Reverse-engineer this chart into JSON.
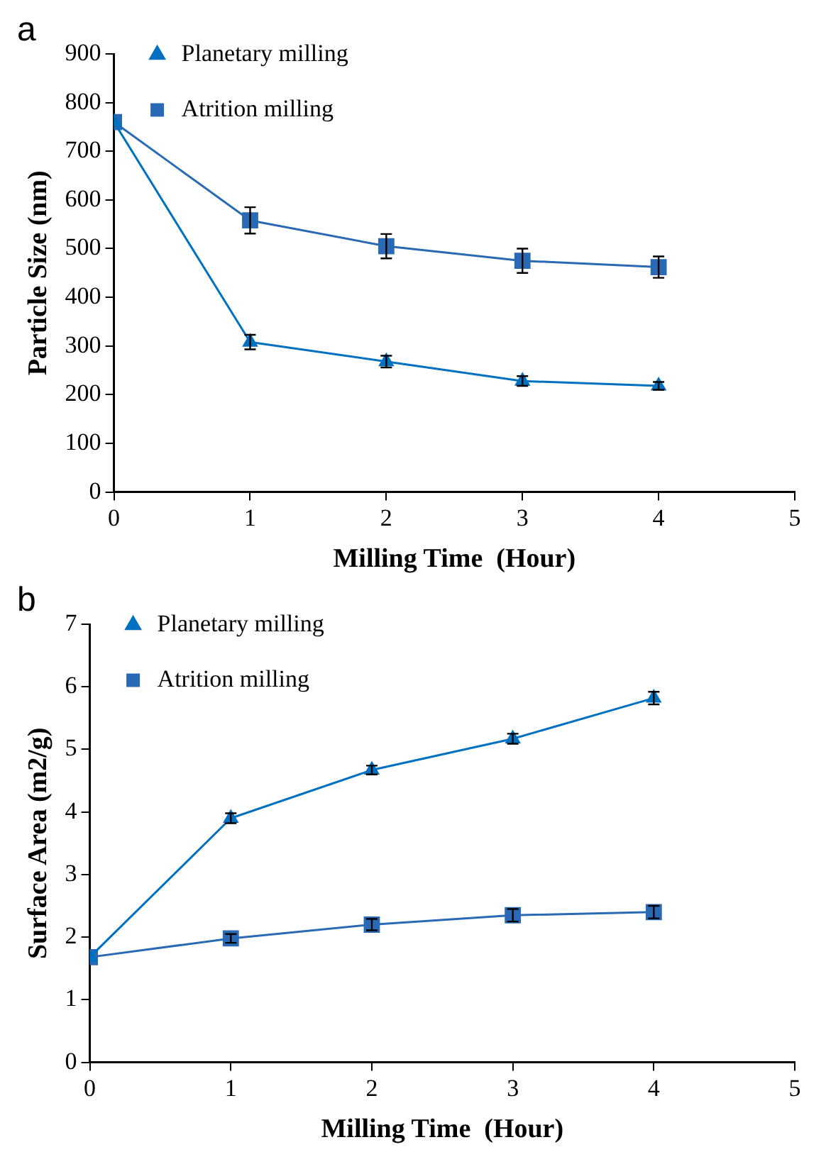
{
  "chart_data": [
    {
      "type": "line",
      "annotations": [
        "a"
      ],
      "xlabel": "Milling Time  (Hour)",
      "ylabel": "Particle Size (nm)",
      "x": [
        0,
        1,
        2,
        3,
        4
      ],
      "xlim": [
        0,
        5
      ],
      "xticks": [
        0,
        1,
        2,
        3,
        4,
        5
      ],
      "ylim": [
        0,
        900
      ],
      "yticks": [
        0,
        100,
        200,
        300,
        400,
        500,
        600,
        700,
        800,
        900
      ],
      "grid": false,
      "legend": "top",
      "line_style": "solid",
      "series": [
        {
          "name": "Planetary milling",
          "color": "#0070c0",
          "marker": "triangle",
          "values": [
            760,
            308,
            268,
            228,
            218
          ],
          "errors": [
            null,
            15,
            12,
            10,
            8
          ]
        },
        {
          "name": "Atrition milling",
          "color": "#2a6ab4",
          "marker": "square",
          "values": [
            760,
            558,
            505,
            475,
            462
          ],
          "errors": [
            null,
            27,
            25,
            25,
            22
          ]
        }
      ]
    },
    {
      "type": "line",
      "annotations": [
        "b"
      ],
      "xlabel": "Milling Time  (Hour)",
      "ylabel": "Surface Area (m2/g)",
      "x": [
        0,
        1,
        2,
        3,
        4
      ],
      "xlim": [
        0,
        5
      ],
      "xticks": [
        0,
        1,
        2,
        3,
        4,
        5
      ],
      "ylim": [
        0,
        7
      ],
      "yticks": [
        0,
        1,
        2,
        3,
        4,
        5,
        6,
        7
      ],
      "grid": false,
      "legend": "top left",
      "line_style": "solid",
      "series": [
        {
          "name": "Planetary milling",
          "color": "#0070c0",
          "marker": "triangle",
          "values": [
            1.68,
            3.9,
            4.67,
            5.17,
            5.82
          ],
          "errors": [
            null,
            0.08,
            0.07,
            0.08,
            0.1
          ]
        },
        {
          "name": "Atrition milling",
          "color": "#2a6ab4",
          "marker": "square",
          "values": [
            1.68,
            1.98,
            2.2,
            2.35,
            2.4
          ],
          "errors": [
            null,
            0.07,
            0.09,
            0.1,
            0.1
          ]
        }
      ]
    }
  ]
}
